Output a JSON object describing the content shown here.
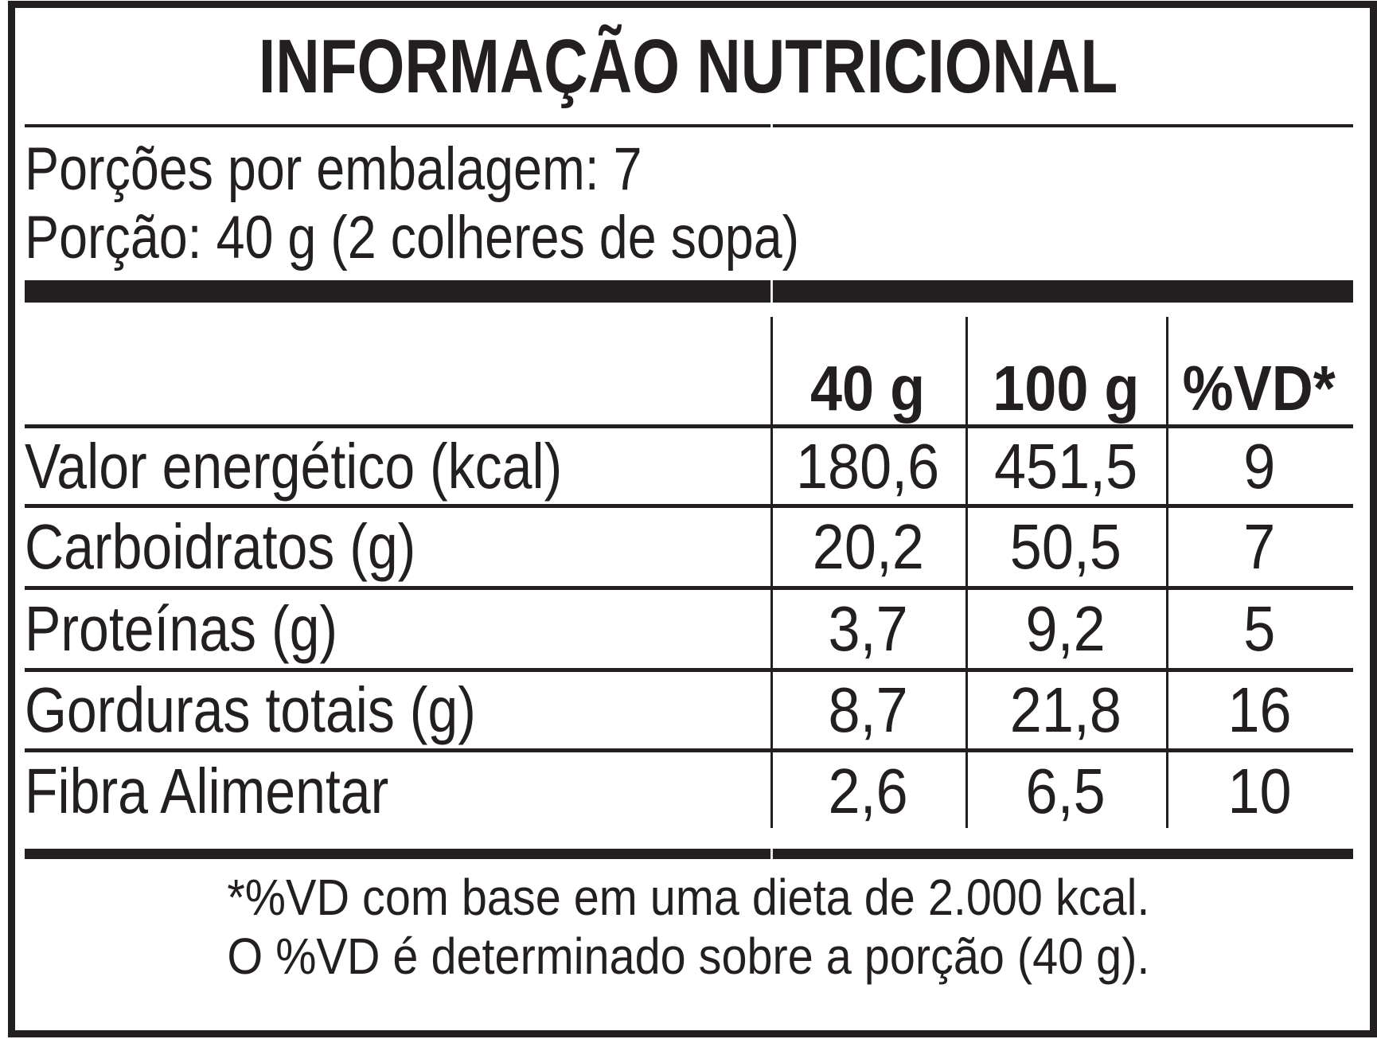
{
  "title": "INFORMAÇÃO NUTRICIONAL",
  "servings": {
    "per_package": "Porções por embalagem: 7",
    "portion": "Porção: 40 g (2 colheres de sopa)"
  },
  "table": {
    "columns": [
      "40 g",
      "100 g",
      "%VD*"
    ],
    "rows": [
      {
        "label": "Valor energético (kcal)",
        "values": [
          "180,6",
          "451,5",
          "9"
        ]
      },
      {
        "label": "Carboidratos (g)",
        "values": [
          "20,2",
          "50,5",
          "7"
        ]
      },
      {
        "label": "Proteínas (g)",
        "values": [
          "3,7",
          "9,2",
          "5"
        ]
      },
      {
        "label": "Gorduras totais (g)",
        "values": [
          "8,7",
          "21,8",
          "16"
        ]
      },
      {
        "label": "Fibra Alimentar",
        "values": [
          "2,6",
          "6,5",
          "10"
        ]
      }
    ]
  },
  "footnotes": {
    "line1": "*%VD com base em uma dieta de 2.000 kcal.",
    "line2": "O %VD é determinado sobre a porção (40 g)."
  },
  "colors": {
    "ink": "#231f20",
    "background": "#ffffff"
  }
}
